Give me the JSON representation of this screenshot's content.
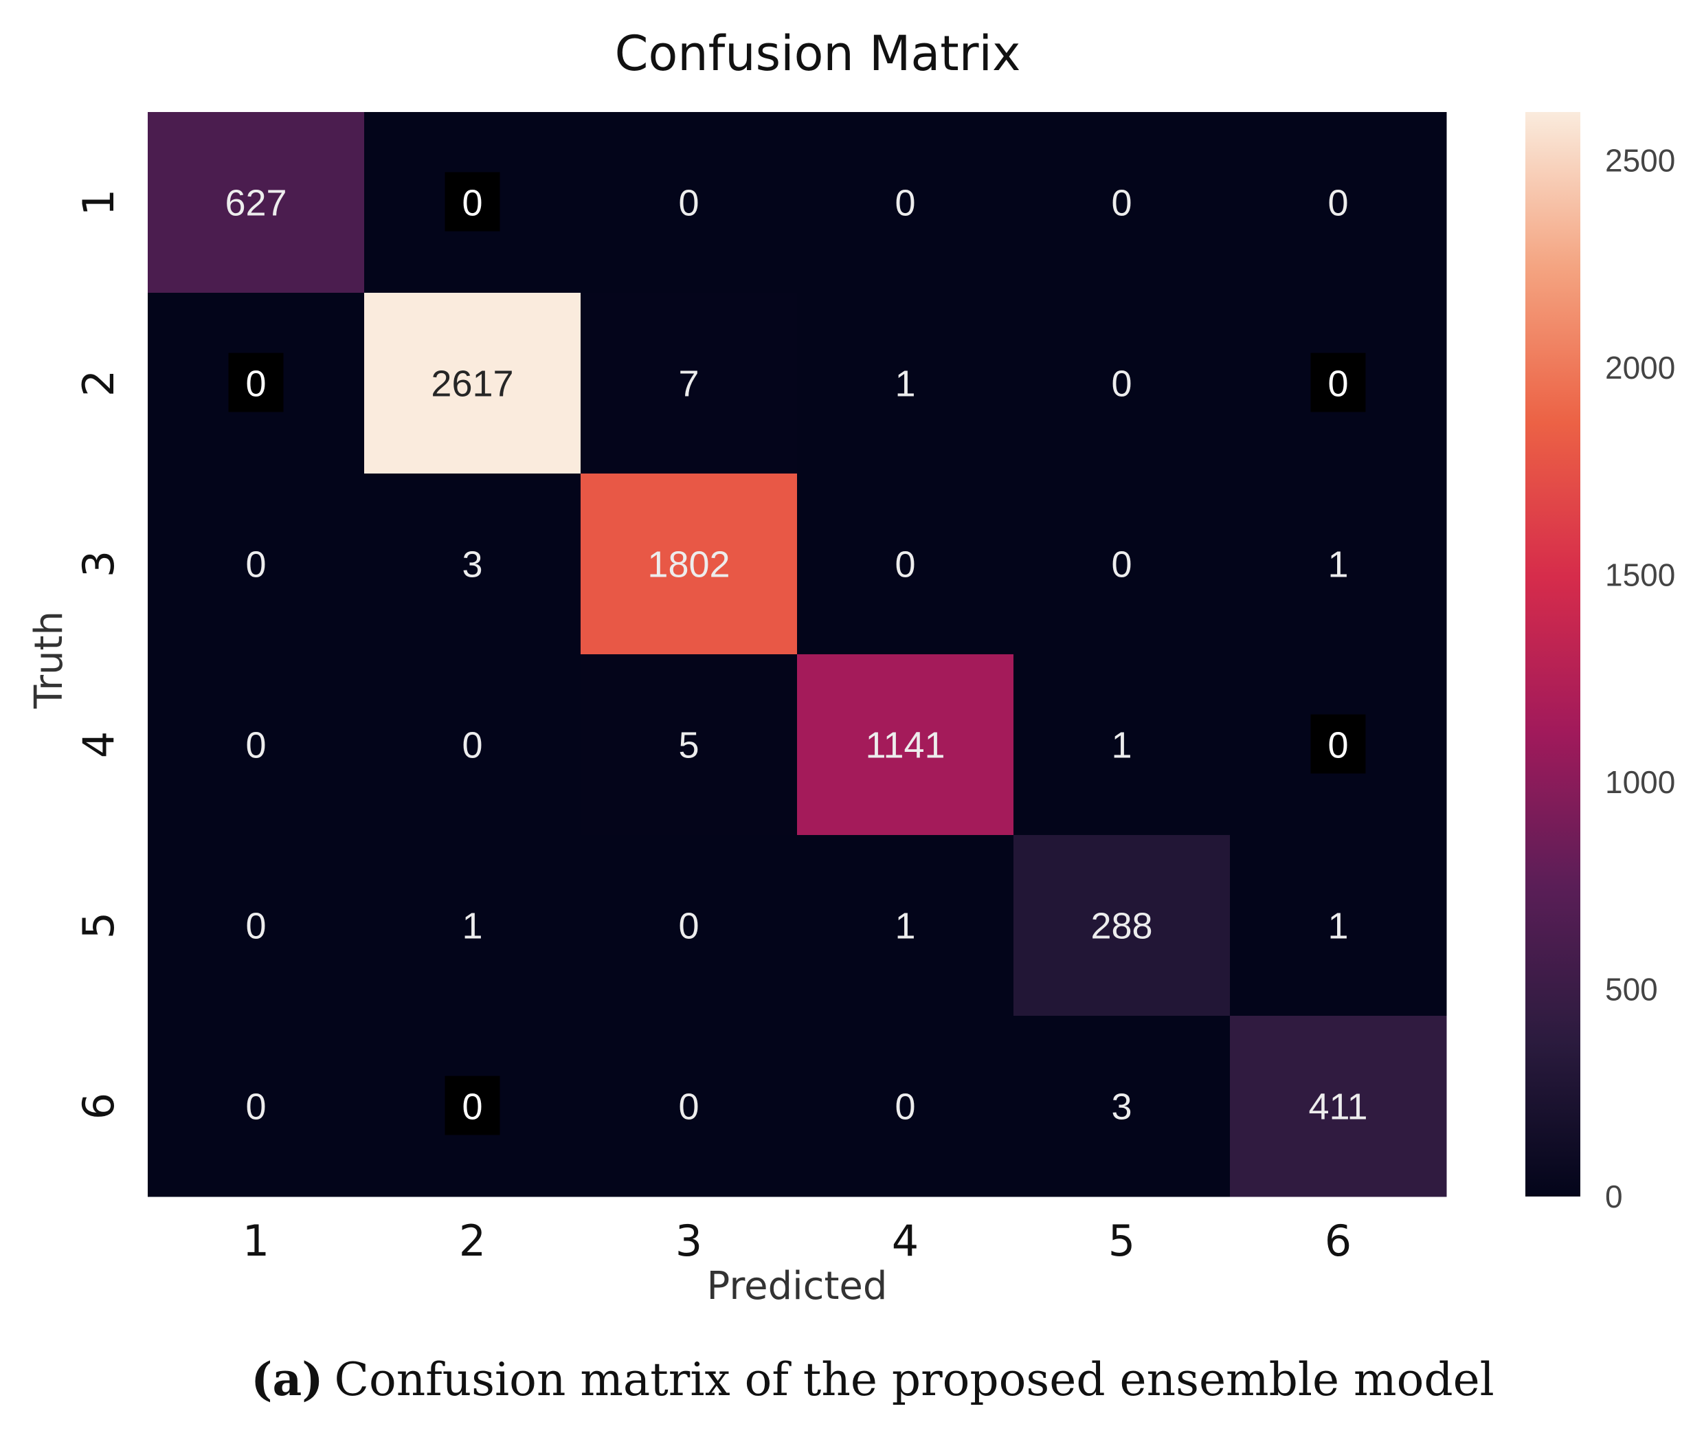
{
  "chart_data": {
    "type": "heatmap",
    "title": "Confusion Matrix",
    "xlabel": "Predicted",
    "ylabel": "Truth",
    "x_categories": [
      "1",
      "2",
      "3",
      "4",
      "5",
      "6"
    ],
    "y_categories": [
      "1",
      "2",
      "3",
      "4",
      "5",
      "6"
    ],
    "matrix": [
      [
        627,
        0,
        0,
        0,
        0,
        0
      ],
      [
        0,
        2617,
        7,
        1,
        0,
        0
      ],
      [
        0,
        3,
        1802,
        0,
        0,
        1
      ],
      [
        0,
        0,
        5,
        1141,
        1,
        0
      ],
      [
        0,
        1,
        0,
        1,
        288,
        1
      ],
      [
        0,
        0,
        0,
        0,
        3,
        411
      ]
    ],
    "highlighted_zero_cells": [
      [
        0,
        1
      ],
      [
        1,
        0
      ],
      [
        1,
        5
      ],
      [
        3,
        5
      ],
      [
        5,
        1
      ]
    ],
    "colorbar": {
      "min": 0,
      "max": 2617,
      "ticks": [
        0,
        500,
        1000,
        1500,
        2000,
        2500
      ],
      "colorscale": [
        "#03051a",
        "#2b1b3e",
        "#5a1e57",
        "#a11a5b",
        "#d62c4b",
        "#ec6245",
        "#f4a481",
        "#faebdd"
      ]
    }
  },
  "caption": {
    "label": "(a)",
    "text": "Confusion matrix of the proposed ensemble model"
  }
}
